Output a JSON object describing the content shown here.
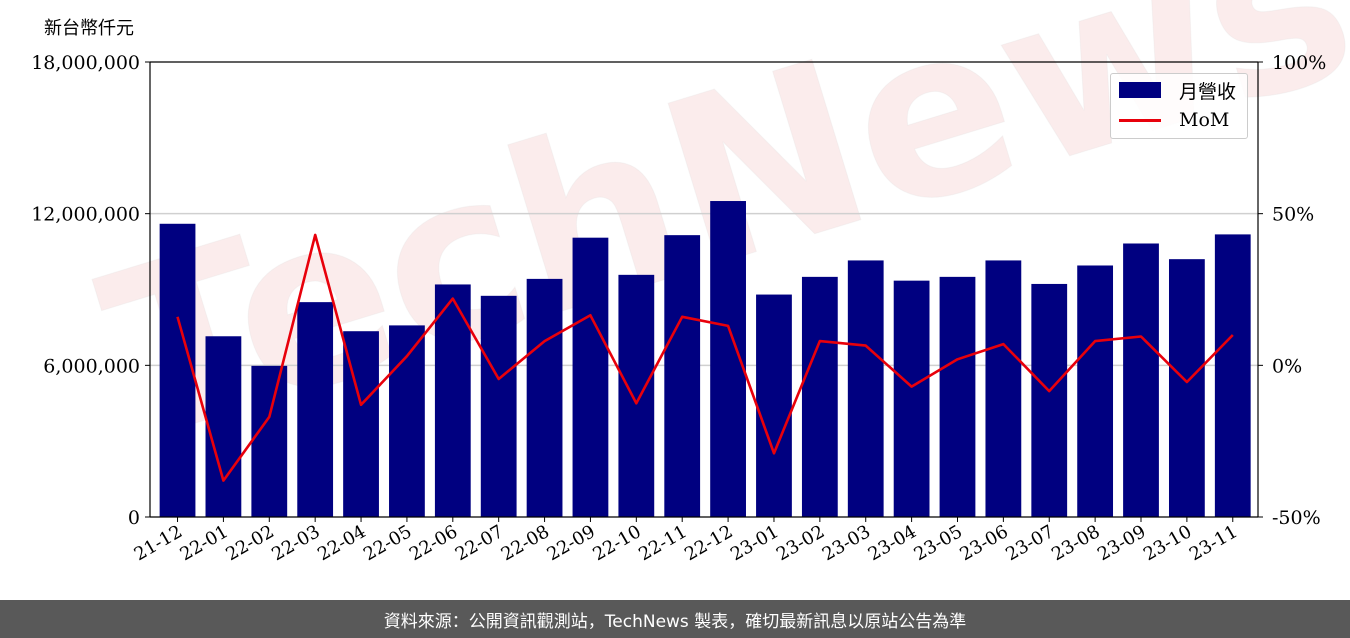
{
  "chart_data": {
    "type": "bar",
    "y_unit_label": "新台幣仟元",
    "categories": [
      "21-12",
      "22-01",
      "22-02",
      "22-03",
      "22-04",
      "22-05",
      "22-06",
      "22-07",
      "22-08",
      "22-09",
      "22-10",
      "22-11",
      "22-12",
      "23-01",
      "23-02",
      "23-03",
      "23-04",
      "23-05",
      "23-06",
      "23-07",
      "23-08",
      "23-09",
      "23-10",
      "23-11"
    ],
    "series": [
      {
        "name": "月營收",
        "type": "bar",
        "axis": "left",
        "color": "#000080",
        "values": [
          11600000,
          7150000,
          5980000,
          8500000,
          7350000,
          7580000,
          9200000,
          8750000,
          9420000,
          11050000,
          9580000,
          11150000,
          12500000,
          8800000,
          9500000,
          10150000,
          9350000,
          9500000,
          10150000,
          9220000,
          9950000,
          10820000,
          10200000,
          11180000
        ]
      },
      {
        "name": "MoM",
        "type": "line",
        "axis": "right",
        "color": "#e8000b",
        "values": [
          16,
          -38,
          -17,
          43,
          -13,
          3,
          22,
          -4.5,
          8,
          16.5,
          -12.5,
          16,
          13,
          -29,
          8,
          6.5,
          -7,
          2,
          7,
          -8.5,
          8,
          9.5,
          -5.5,
          10
        ]
      }
    ],
    "y_left": {
      "ylim": [
        0,
        18000000
      ],
      "ticks": [
        "0",
        "6,000,000",
        "12,000,000",
        "18,000,000"
      ]
    },
    "y_right": {
      "ylim": [
        -50,
        100
      ],
      "ticks": [
        "-50%",
        "0%",
        "50%",
        "100%"
      ]
    },
    "grid": true,
    "legend_position": "top-right",
    "watermark": "TechNews"
  },
  "footer": {
    "source": "資料來源：公開資訊觀測站，TechNews 製表，確切最新訊息以原站公告為準"
  }
}
